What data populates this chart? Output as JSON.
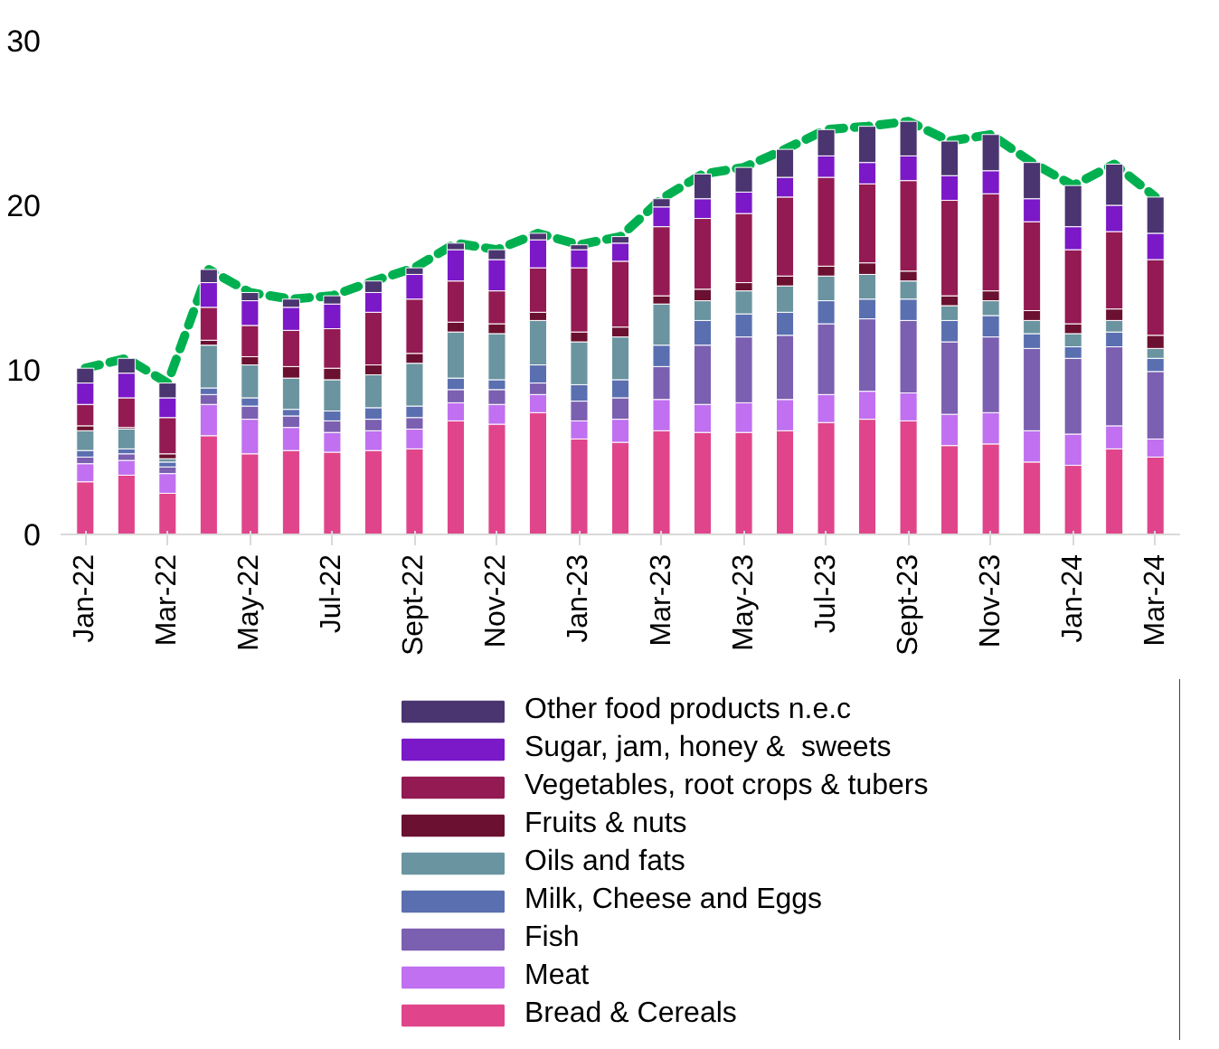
{
  "chart_data": {
    "type": "bar",
    "stacked": true,
    "legend": "bottom",
    "grid": false,
    "categories": [
      "Jan-22",
      null,
      "Mar-22",
      null,
      "May-22",
      null,
      "Jul-22",
      null,
      "Sept-22",
      null,
      "Nov-22",
      null,
      "Jan-23",
      null,
      "Mar-23",
      null,
      "May-23",
      null,
      "Jul-23",
      null,
      "Sept-23",
      null,
      "Nov-23",
      null,
      "Jan-24",
      null,
      "Mar-24"
    ],
    "ylim": [
      0,
      30
    ],
    "yticks": [
      0,
      10,
      20,
      30
    ],
    "series": [
      {
        "name": "Bread & Cereals",
        "color": "#e0458b",
        "values": [
          3.2,
          3.6,
          2.5,
          6.0,
          4.9,
          5.1,
          5.0,
          5.1,
          5.2,
          6.9,
          6.7,
          7.4,
          5.8,
          5.6,
          6.3,
          6.2,
          6.2,
          6.3,
          6.8,
          7.0,
          6.9,
          5.4,
          5.5,
          4.4,
          4.2,
          5.2,
          4.7
        ]
      },
      {
        "name": "Meat",
        "color": "#c070f0",
        "values": [
          1.1,
          0.9,
          1.2,
          1.9,
          2.1,
          1.4,
          1.2,
          1.2,
          1.2,
          1.1,
          1.2,
          1.1,
          1.1,
          1.4,
          1.9,
          1.7,
          1.8,
          1.9,
          1.7,
          1.7,
          1.7,
          1.9,
          1.9,
          1.9,
          1.9,
          1.4,
          1.1
        ]
      },
      {
        "name": "Fish",
        "color": "#7b5fb0",
        "values": [
          0.4,
          0.4,
          0.4,
          0.6,
          0.8,
          0.7,
          0.7,
          0.7,
          0.7,
          0.8,
          0.9,
          0.7,
          1.2,
          1.3,
          2.0,
          3.6,
          4.0,
          3.9,
          4.3,
          4.4,
          4.4,
          4.4,
          4.6,
          5.0,
          4.6,
          4.8,
          4.1
        ]
      },
      {
        "name": "Milk, Cheese and Eggs",
        "color": "#5a6fb0",
        "values": [
          0.4,
          0.3,
          0.3,
          0.4,
          0.5,
          0.4,
          0.6,
          0.7,
          0.7,
          0.7,
          0.6,
          1.1,
          1.0,
          1.1,
          1.3,
          1.5,
          1.4,
          1.4,
          1.4,
          1.2,
          1.3,
          1.3,
          1.3,
          0.9,
          0.7,
          0.9,
          0.8
        ]
      },
      {
        "name": "Oils and fats",
        "color": "#6a94a0",
        "values": [
          1.2,
          1.2,
          0.2,
          2.6,
          2.0,
          1.9,
          1.9,
          2.0,
          2.6,
          2.8,
          2.8,
          2.7,
          2.6,
          2.6,
          2.5,
          1.2,
          1.4,
          1.6,
          1.5,
          1.5,
          1.1,
          0.9,
          0.9,
          0.8,
          0.8,
          0.7,
          0.6
        ]
      },
      {
        "name": "Fruits & nuts",
        "color": "#6b1030",
        "values": [
          0.3,
          0.1,
          0.3,
          0.3,
          0.5,
          0.7,
          0.7,
          0.6,
          0.6,
          0.6,
          0.6,
          0.5,
          0.6,
          0.6,
          0.5,
          0.7,
          0.5,
          0.6,
          0.6,
          0.7,
          0.6,
          0.6,
          0.6,
          0.6,
          0.6,
          0.7,
          0.8
        ]
      },
      {
        "name": "Vegetables, root crops & tubers",
        "color": "#931a52",
        "values": [
          1.3,
          1.8,
          2.2,
          2.0,
          1.9,
          2.2,
          2.4,
          3.2,
          3.3,
          2.5,
          2.0,
          2.7,
          3.9,
          4.0,
          4.2,
          4.3,
          4.2,
          4.8,
          5.4,
          4.8,
          5.5,
          5.8,
          5.9,
          5.4,
          4.5,
          4.7,
          4.6
        ]
      },
      {
        "name": "Sugar, jam, honey &  sweets",
        "color": "#7b18c8",
        "values": [
          1.3,
          1.5,
          1.2,
          1.5,
          1.5,
          1.4,
          1.5,
          1.2,
          1.5,
          1.9,
          1.9,
          1.7,
          1.1,
          1.1,
          1.2,
          1.2,
          1.3,
          1.2,
          1.3,
          1.3,
          1.5,
          1.5,
          1.4,
          1.4,
          1.4,
          1.6,
          1.6
        ]
      },
      {
        "name": "Other food products n.e.c",
        "color": "#4a3570",
        "values": [
          0.9,
          0.9,
          0.9,
          0.8,
          0.5,
          0.5,
          0.5,
          0.7,
          0.4,
          0.4,
          0.6,
          0.4,
          0.3,
          0.4,
          0.5,
          1.5,
          1.5,
          1.7,
          1.6,
          2.2,
          2.1,
          2.1,
          2.2,
          2.2,
          2.5,
          2.5,
          2.2
        ]
      },
      {
        "type": "line",
        "line_style": "dashed",
        "color": "#00b050",
        "values": [
          10.1,
          10.7,
          9.2,
          16.1,
          14.7,
          14.3,
          14.5,
          15.4,
          16.2,
          17.7,
          17.3,
          18.3,
          17.6,
          18.1,
          20.4,
          21.9,
          22.3,
          23.4,
          24.6,
          24.8,
          25.1,
          23.9,
          24.3,
          22.6,
          21.2,
          22.5,
          20.5
        ]
      }
    ]
  }
}
